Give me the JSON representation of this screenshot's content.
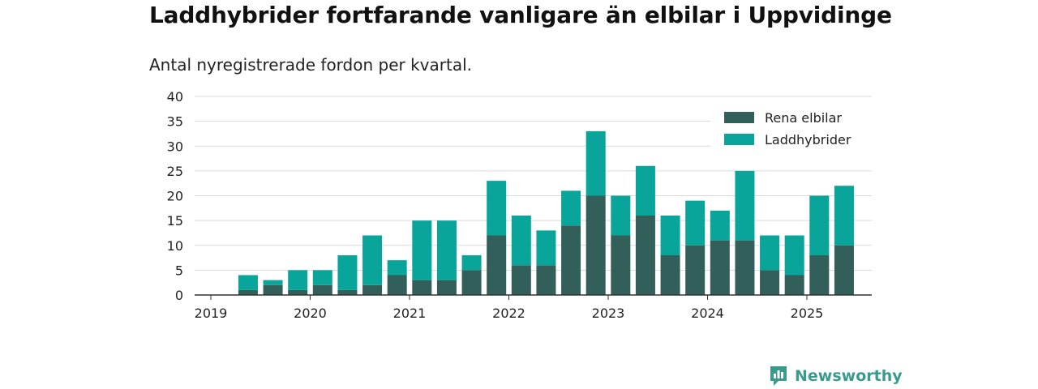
{
  "title": "Laddhybrider fortfarande vanligare än elbilar i Uppvidinge",
  "subtitle": "Antal nyregistrerade fordon per kvartal.",
  "brand": {
    "name": "Newsworthy",
    "icon": "newsworthy-logo-icon",
    "color": "#3a9a8e"
  },
  "colors": {
    "rena_elbilar": "#335f5b",
    "laddhybrider": "#0aa59a",
    "grid": "#d9d9d9",
    "axis": "#333333"
  },
  "chart_data": {
    "type": "bar",
    "stacked": true,
    "title": "Laddhybrider fortfarande vanligare än elbilar i Uppvidinge",
    "subtitle": "Antal nyregistrerade fordon per kvartal.",
    "categories": [
      "2019 Q2",
      "2019 Q3",
      "2019 Q4",
      "2020 Q1",
      "2020 Q2",
      "2020 Q3",
      "2020 Q4",
      "2021 Q1",
      "2021 Q2",
      "2021 Q3",
      "2021 Q4",
      "2022 Q1",
      "2022 Q2",
      "2022 Q3",
      "2022 Q4",
      "2023 Q1",
      "2023 Q2",
      "2023 Q3",
      "2023 Q4",
      "2024 Q1",
      "2024 Q2",
      "2024 Q3",
      "2024 Q4",
      "2025 Q1",
      "2025 Q2"
    ],
    "series": [
      {
        "name": "Rena elbilar",
        "values": [
          1,
          2,
          1,
          2,
          1,
          2,
          4,
          3,
          3,
          5,
          12,
          6,
          6,
          14,
          20,
          12,
          16,
          8,
          10,
          11,
          11,
          5,
          4,
          8,
          10
        ]
      },
      {
        "name": "Laddhybrider",
        "values": [
          3,
          1,
          4,
          3,
          7,
          10,
          3,
          12,
          12,
          3,
          11,
          10,
          7,
          7,
          13,
          8,
          10,
          8,
          9,
          6,
          14,
          7,
          8,
          12,
          12
        ]
      }
    ],
    "xlabel": "",
    "ylabel": "",
    "ylim": [
      0,
      40
    ],
    "yticks": [
      0,
      5,
      10,
      15,
      20,
      25,
      30,
      35,
      40
    ],
    "xticks": [
      "2019",
      "2020",
      "2021",
      "2022",
      "2023",
      "2024",
      "2025"
    ],
    "grid": true,
    "legend": "top-right"
  }
}
